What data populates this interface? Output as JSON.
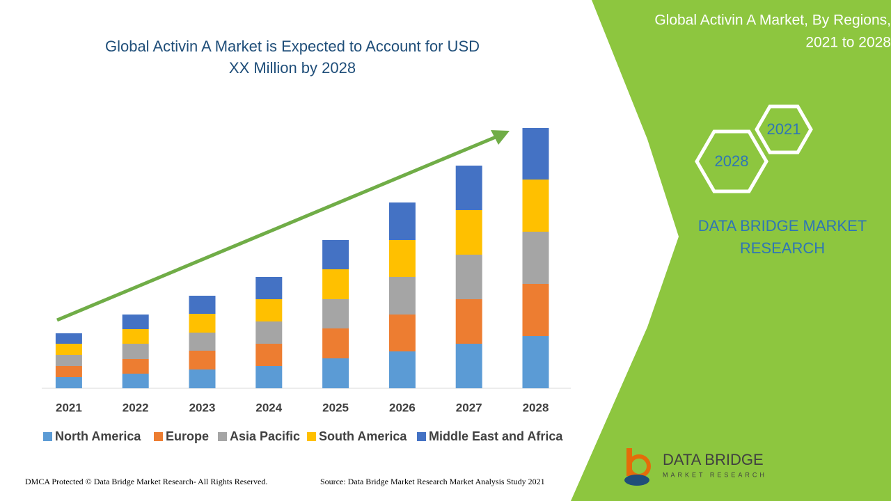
{
  "chart_data": {
    "type": "stacked-bar",
    "title": "Global Activin A Market is Expected to Account for USD XX Million by 2028",
    "categories": [
      "2021",
      "2022",
      "2023",
      "2024",
      "2025",
      "2026",
      "2027",
      "2028"
    ],
    "series": [
      {
        "name": "North America",
        "color": "#5b9bd5",
        "values": [
          16,
          21,
          27,
          32,
          43,
          53,
          64,
          75
        ]
      },
      {
        "name": "Europe",
        "color": "#ed7d31",
        "values": [
          16,
          21,
          27,
          32,
          43,
          53,
          64,
          75
        ]
      },
      {
        "name": "Asia Pacific",
        "color": "#a5a5a5",
        "values": [
          16,
          22,
          26,
          32,
          42,
          54,
          64,
          75
        ]
      },
      {
        "name": "South America",
        "color": "#ffc000",
        "values": [
          16,
          21,
          27,
          32,
          43,
          53,
          64,
          75
        ]
      },
      {
        "name": "Middle East and Africa",
        "color": "#4472c4",
        "values": [
          15,
          21,
          26,
          32,
          42,
          54,
          64,
          74
        ]
      }
    ]
  },
  "panel": {
    "title": "Global Activin A Market, By Regions, 2021 to 2028",
    "hex_top": "2021",
    "hex_bottom": "2028",
    "brand": "DATA BRIDGE MARKET RESEARCH"
  },
  "logo": {
    "name": "DATA BRIDGE",
    "tagline": "MARKET RESEARCH"
  },
  "footer": {
    "left": "DMCA Protected © Data Bridge Market Research- All Rights Reserved.",
    "right": "Source: Data Bridge Market Research Market Analysis Study 2021"
  }
}
